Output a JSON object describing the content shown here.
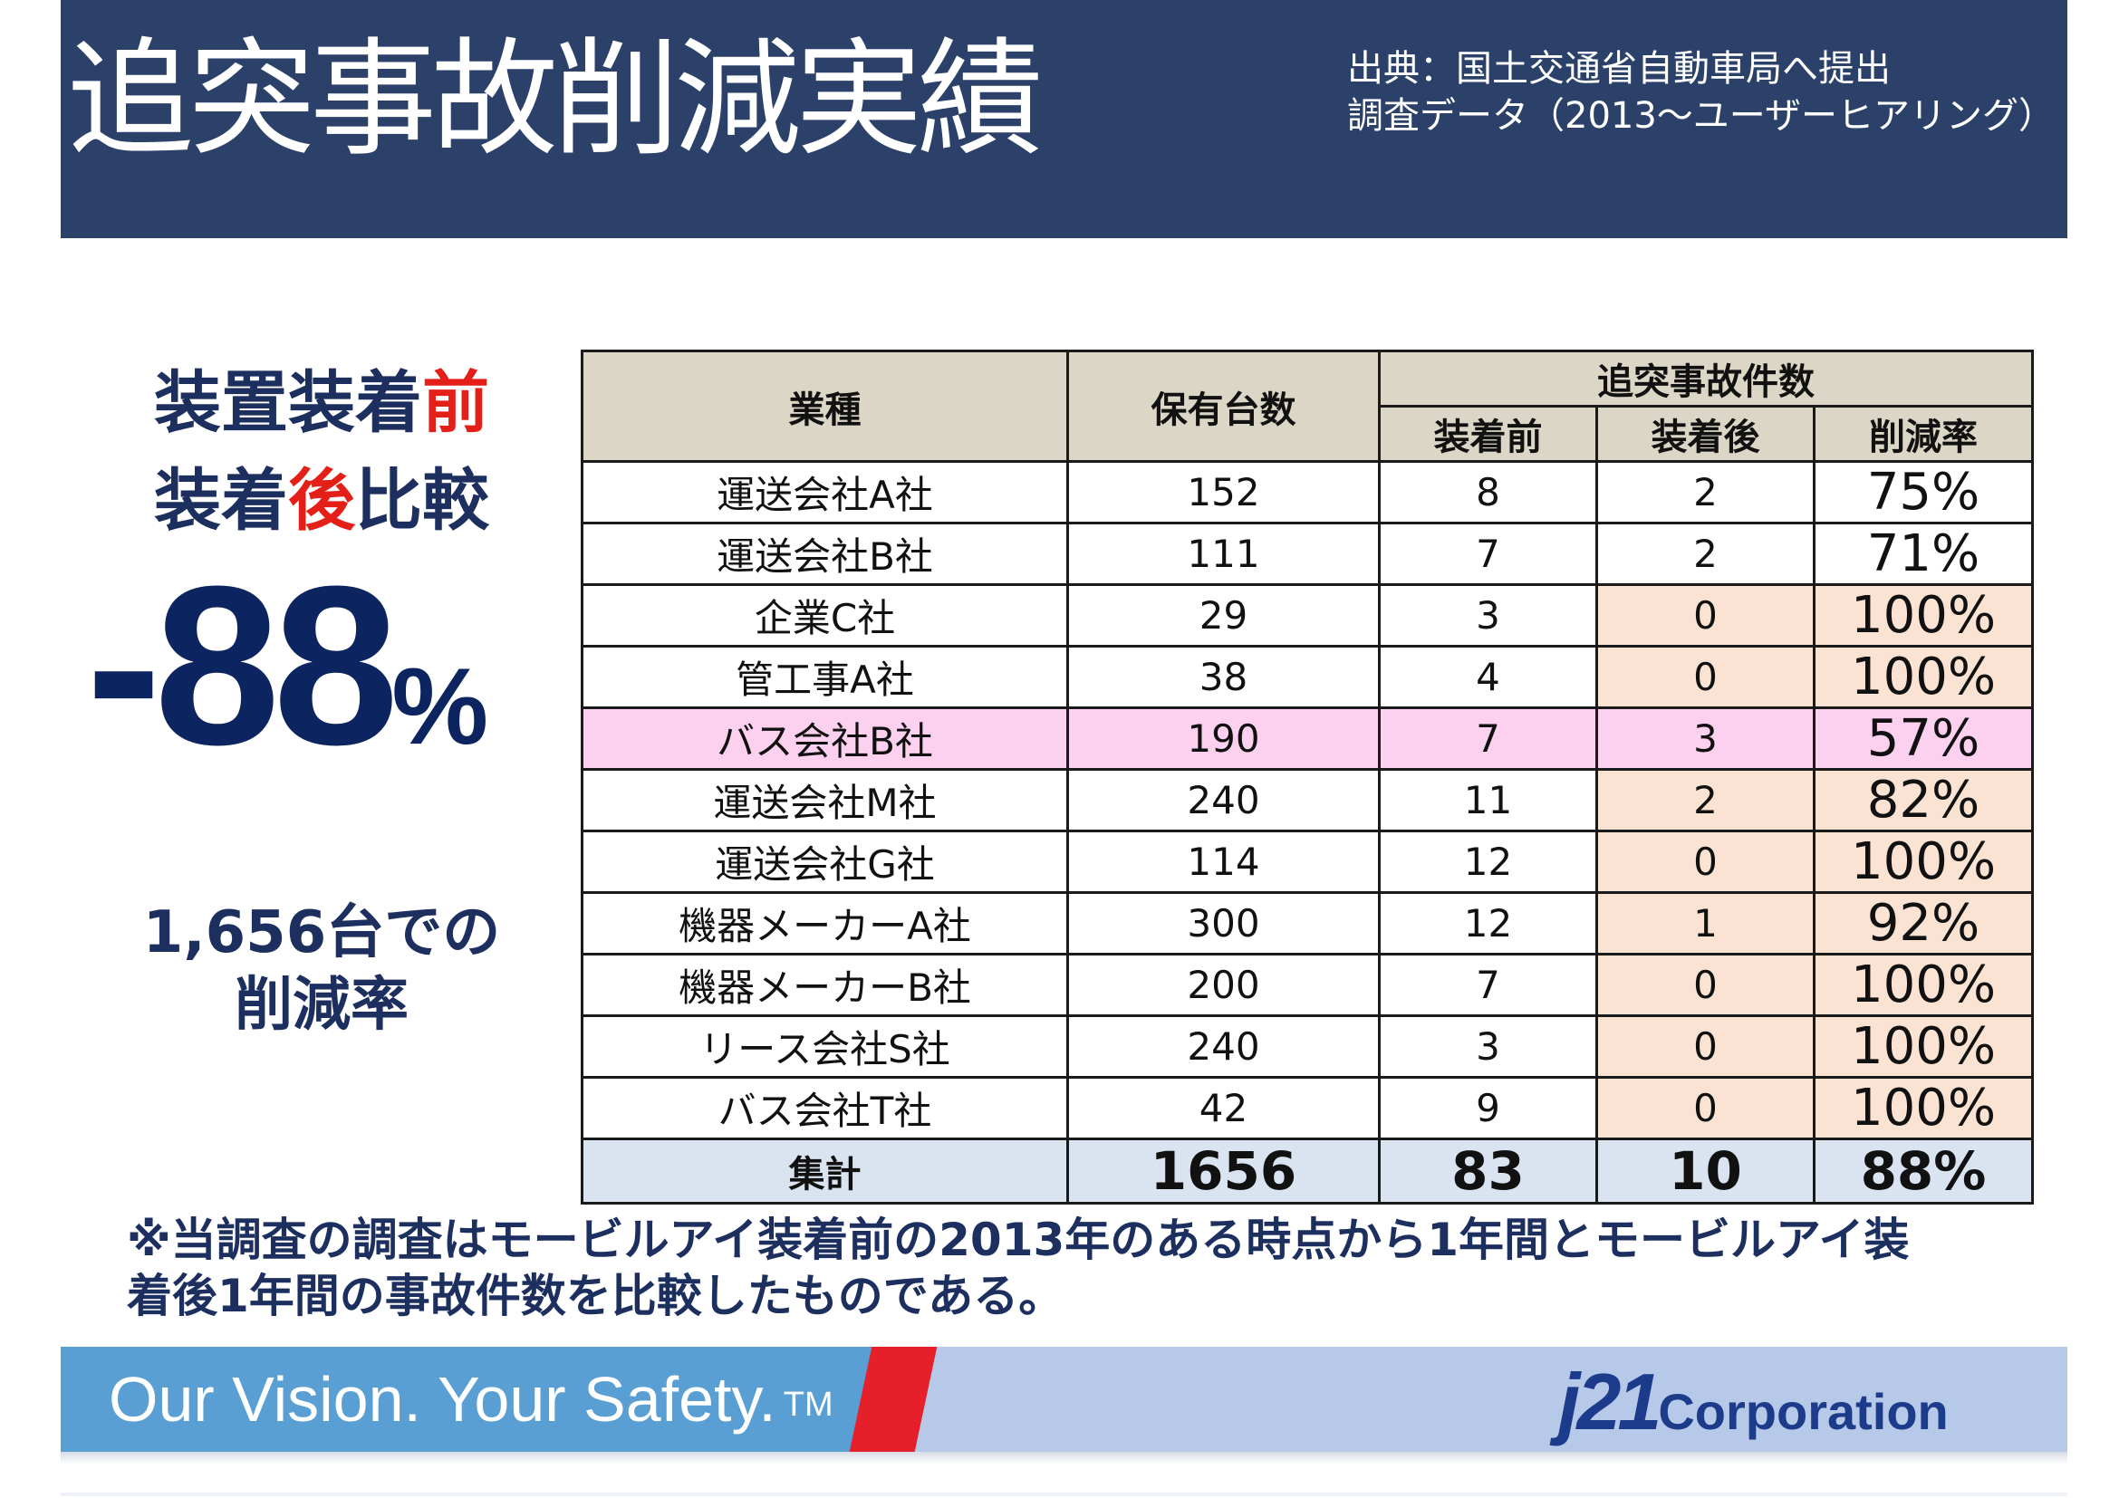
{
  "header": {
    "title": "追突事故削減実績",
    "source_line1": "出典：国土交通省自動車局へ提出",
    "source_line2": "調査データ（2013～ユーザーヒアリング）"
  },
  "summary": {
    "line1_part1": "装置装着",
    "line1_emph": "前",
    "line2_part1": "装着",
    "line2_emph": "後",
    "line2_part2": "比較",
    "rate_value": "-88",
    "rate_unit": "%",
    "note_line1": "1,656台での",
    "note_line2": "削減率",
    "accent_color": "#e41f18",
    "text_color": "#1c2f5f"
  },
  "table": {
    "headers": {
      "industry": "業種",
      "vehicles": "保有台数",
      "accidents": "追突事故件数",
      "before": "装着前",
      "after": "装着後",
      "rate": "削減率"
    },
    "rows": [
      {
        "industry": "運送会社A社",
        "vehicles": "152",
        "before": "8",
        "after": "2",
        "rate": "75%",
        "highlight": "none"
      },
      {
        "industry": "運送会社B社",
        "vehicles": "111",
        "before": "7",
        "after": "2",
        "rate": "71%",
        "highlight": "none"
      },
      {
        "industry": "企業C社",
        "vehicles": "29",
        "before": "3",
        "after": "0",
        "rate": "100%",
        "highlight": "peach"
      },
      {
        "industry": "管工事A社",
        "vehicles": "38",
        "before": "4",
        "after": "0",
        "rate": "100%",
        "highlight": "peach"
      },
      {
        "industry": "バス会社B社",
        "vehicles": "190",
        "before": "7",
        "after": "3",
        "rate": "57%",
        "highlight": "pink"
      },
      {
        "industry": "運送会社M社",
        "vehicles": "240",
        "before": "11",
        "after": "2",
        "rate": "82%",
        "highlight": "peach"
      },
      {
        "industry": "運送会社G社",
        "vehicles": "114",
        "before": "12",
        "after": "0",
        "rate": "100%",
        "highlight": "peach"
      },
      {
        "industry": "機器メーカーA社",
        "vehicles": "300",
        "before": "12",
        "after": "1",
        "rate": "92%",
        "highlight": "peach"
      },
      {
        "industry": "機器メーカーB社",
        "vehicles": "200",
        "before": "7",
        "after": "0",
        "rate": "100%",
        "highlight": "peach"
      },
      {
        "industry": "リース会社S社",
        "vehicles": "240",
        "before": "3",
        "after": "0",
        "rate": "100%",
        "highlight": "peach"
      },
      {
        "industry": "バス会社T社",
        "vehicles": "42",
        "before": "9",
        "after": "0",
        "rate": "100%",
        "highlight": "peach"
      }
    ],
    "total": {
      "label": "集計",
      "vehicles": "1656",
      "before": "83",
      "after": "10",
      "rate": "88%"
    }
  },
  "footnote": {
    "line1": "※当調査の調査はモービルアイ装着前の2013年のある時点から1年間とモービルアイ装",
    "line2": "着後1年間の事故件数を比較したものである。"
  },
  "banner": {
    "tagline": "Our Vision. Your Safety.",
    "trademark": "TM",
    "logo_mark": "j21",
    "logo_name": "Corporation"
  }
}
